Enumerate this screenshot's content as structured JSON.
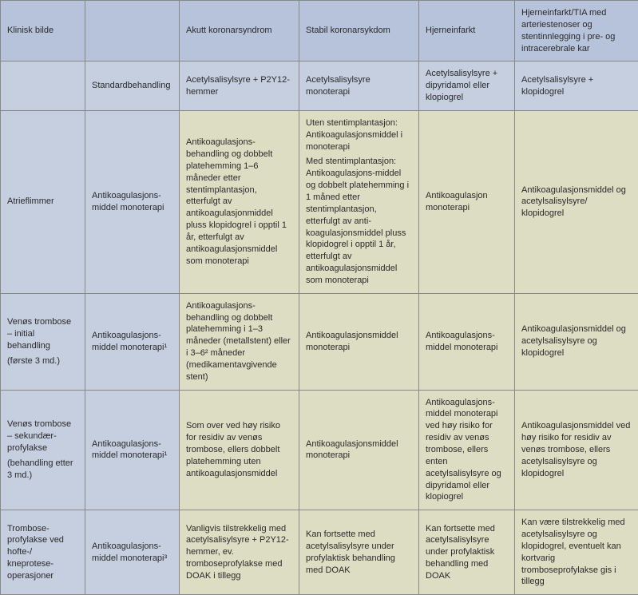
{
  "columns": {
    "widths": [
      106,
      118,
      150,
      150,
      120,
      155
    ]
  },
  "header": {
    "c0": "Klinisk bilde",
    "c1": "",
    "c2": "Akutt koronarsyndrom",
    "c3": "Stabil koronarsykdom",
    "c4": "Hjerneinfarkt",
    "c5": "Hjerneinfarkt/TIA med arteriestenoser og stentinnlegging i pre- og intracerebrale kar"
  },
  "standard": {
    "c0": "",
    "c1": "Standardbehandling",
    "c2": "Acetylsalisylsyre  + P2Y12-hemmer",
    "c3": "Acetylsalisylsyre monoterapi",
    "c4": "Acetylsalisylsyre + dipyridamol eller klopiogrel",
    "c5": "Acetylsalisylsyre  + klopidogrel"
  },
  "rows": [
    {
      "c0": "Atrieflimmer",
      "c1": "Antikoagulasjons-middel monoterapi",
      "c2": "Antikoagulasjons-behandling og dobbelt platehemming 1–6 måneder etter stentimplantasjon, etterfulgt av antikoagulasjonmiddel pluss klopidogrel i opptil 1 år, etterfulgt av antikoagulasjonsmiddel som monoterapi",
      "c3": "Uten stentimplantasjon: Antikoagulasjonsmiddel i monoterapi\nMed stentimplantasjon: Antikoagulasjons-middel og dobbelt platehemming i 1 måned etter stentimplantasjon, etterfulgt av anti-koagulasjonsmiddel pluss klopidogrel i opptil 1 år, etterfulgt av antikoagulasjonsmiddel som monoterapi",
      "c4": "Antikoagulasjon monoterapi",
      "c5": "Antikoagulasjonsmiddel og acetylsalisylsyre/ klopidogrel"
    },
    {
      "c0": "Venøs trombose – initial behandling\n(første 3 md.)",
      "c1": "Antikoagulasjons-middel monoterapi¹",
      "c2": "Antikoagulasjons-behandling og dobbelt platehemming i 1–3 måneder (metallstent) eller i 3–6² måneder (medikamentavgivende stent)",
      "c3": "Antikoagulasjonsmiddel monoterapi",
      "c4": "Antikoagulasjons-middel monoterapi",
      "c5": "Antikoagulasjonsmiddel og acetylsalisylsyre og klopidogrel"
    },
    {
      "c0": "Venøs trombose – sekundær-profylakse\n(behandling etter 3 md.)",
      "c1": "Antikoagulasjons-middel monoterapi¹",
      "c2": "Som over ved høy risiko for residiv av venøs trombose, ellers dobbelt platehemming uten antikoagulasjonsmiddel",
      "c3": "Antikoagulasjonsmiddel monoterapi",
      "c4": "Antikoagulasjons-middel monoterapi ved høy risiko for residiv av venøs trombose, ellers enten acetylsalisylsyre og dipyridamol eller klopiogrel",
      "c5": "Antikoagulasjonsmiddel ved høy risiko for residiv av venøs trombose, ellers acetylsalisylsyre og klopidogrel"
    },
    {
      "c0": "Trombose-profylakse ved hofte-/ kneprotese-operasjoner",
      "c1": "Antikoagulasjons-middel monoterapi³",
      "c2": "Vanligvis tilstrekkelig med acetylsalisylsyre + P2Y12-hemmer, ev. tromboseprofylakse med DOAK i tillegg",
      "c3": "Kan fortsette med acetylsalisylsyre under profylaktisk behandling med DOAK",
      "c4": "Kan fortsette med acetylsalisylsyre under profylaktisk behandling med DOAK",
      "c5": "Kan være tilstrekkelig med acetylsalisylsyre og klopidogrel, eventuelt kan kortvarig tromboseprofylakse gis i tillegg"
    }
  ]
}
